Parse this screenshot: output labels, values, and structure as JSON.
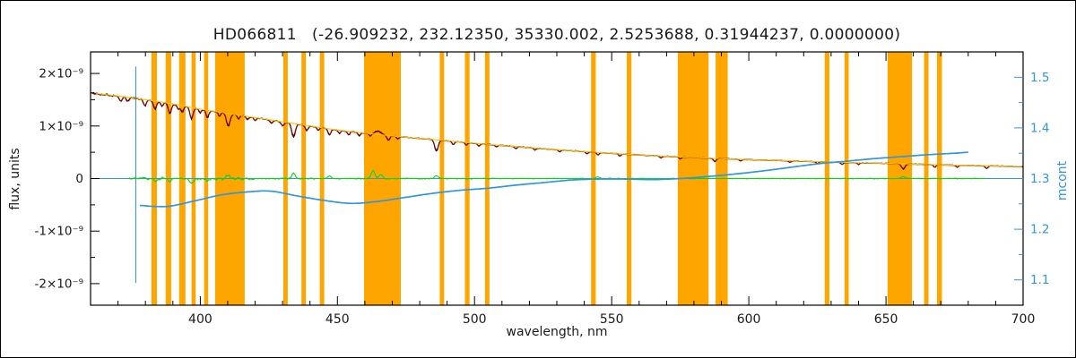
{
  "chart_data": {
    "type": "line",
    "title": "HD066811   (-26.909232, 232.12350, 35330.002, 2.5253688, 0.31944237, 0.0000000)",
    "xlabel": "wavelength, nm",
    "ylabel_left": "flux, units",
    "ylabel_right": "mcont",
    "xlim": [
      360,
      700
    ],
    "flux_unit": "1e-9",
    "ylim_left_1e9": [
      -2.41,
      2.41
    ],
    "ylim_right": [
      1.05,
      1.55
    ],
    "x_major_ticks": [
      400,
      450,
      500,
      550,
      600,
      650,
      700
    ],
    "x_minor_step": 10,
    "y_left_ticks": [
      {
        "value": 2,
        "label": "2×10⁻⁹"
      },
      {
        "value": 1,
        "label": "1×10⁻⁹"
      },
      {
        "value": 0,
        "label": "0"
      },
      {
        "value": -1,
        "label": "-1×10⁻⁹"
      },
      {
        "value": -2,
        "label": "-2×10⁻⁹"
      }
    ],
    "y_right_ticks": [
      1.1,
      1.2,
      1.3,
      1.4,
      1.5
    ],
    "colors": {
      "mask": "#FFA500",
      "axis_text": "#1A1A1A",
      "mcont": "#2F97E0"
    },
    "mask_bands_nm": [
      [
        382.2,
        384.2
      ],
      [
        387.4,
        389.4
      ],
      [
        392.3,
        394.6
      ],
      [
        396.8,
        398.3
      ],
      [
        401.4,
        402.9
      ],
      [
        405.4,
        416.2
      ],
      [
        430.3,
        431.9
      ],
      [
        436.9,
        438.5
      ],
      [
        443.6,
        445.2
      ],
      [
        459.7,
        473.1
      ],
      [
        487.3,
        488.9
      ],
      [
        496.5,
        498.2
      ],
      [
        503.8,
        505.4
      ],
      [
        542.5,
        544.2
      ],
      [
        555.5,
        557.2
      ],
      [
        574.1,
        585.3
      ],
      [
        587.9,
        592.3
      ],
      [
        627.7,
        629.4
      ],
      [
        634.9,
        636.4
      ],
      [
        650.6,
        659.5
      ],
      [
        663.9,
        665.5
      ],
      [
        668.6,
        670.4
      ]
    ],
    "reference_lines": {
      "horizontal_flux_1e9": 0,
      "vertical_nm": 376.5,
      "vertical_top_1e9": 2.13,
      "vertical_bottom_1e9": -1.99
    },
    "absorption_lines_nm": [
      [
        371.0,
        0.1,
        0.7
      ],
      [
        373.5,
        0.08,
        0.6
      ],
      [
        379.8,
        0.12,
        0.7
      ],
      [
        383.5,
        0.16,
        0.7
      ],
      [
        386.0,
        0.08,
        0.6
      ],
      [
        388.9,
        0.2,
        0.8
      ],
      [
        392.0,
        0.08,
        0.6
      ],
      [
        393.4,
        0.12,
        0.7
      ],
      [
        396.8,
        0.22,
        0.8
      ],
      [
        400.0,
        0.07,
        0.6
      ],
      [
        402.6,
        0.14,
        0.7
      ],
      [
        407.0,
        0.08,
        0.6
      ],
      [
        410.2,
        0.24,
        0.9
      ],
      [
        414.0,
        0.08,
        0.6
      ],
      [
        417.2,
        0.07,
        0.6
      ],
      [
        420.0,
        0.06,
        0.6
      ],
      [
        426.0,
        0.06,
        0.6
      ],
      [
        430.0,
        0.08,
        0.7
      ],
      [
        434.0,
        0.26,
        0.9
      ],
      [
        438.8,
        0.1,
        0.7
      ],
      [
        443.0,
        0.06,
        0.6
      ],
      [
        447.1,
        0.12,
        0.7
      ],
      [
        450.7,
        0.06,
        0.6
      ],
      [
        454.1,
        0.07,
        0.6
      ],
      [
        458.0,
        0.06,
        0.6
      ],
      [
        462.0,
        0.05,
        0.6
      ],
      [
        468.6,
        0.09,
        0.7
      ],
      [
        472.0,
        0.05,
        0.6
      ],
      [
        486.1,
        0.22,
        0.9
      ],
      [
        492.2,
        0.07,
        0.6
      ],
      [
        497.0,
        0.05,
        0.6
      ],
      [
        501.6,
        0.05,
        0.6
      ],
      [
        508.0,
        0.04,
        0.6
      ],
      [
        515.0,
        0.04,
        0.6
      ],
      [
        522.0,
        0.04,
        0.6
      ],
      [
        531.0,
        0.04,
        0.6
      ],
      [
        541.0,
        0.04,
        0.6
      ],
      [
        545.0,
        0.05,
        0.6
      ],
      [
        553.0,
        0.04,
        0.6
      ],
      [
        568.0,
        0.04,
        0.6
      ],
      [
        575.0,
        0.04,
        0.6
      ],
      [
        587.6,
        0.06,
        0.7
      ],
      [
        597.0,
        0.03,
        0.6
      ],
      [
        615.0,
        0.03,
        0.6
      ],
      [
        625.0,
        0.04,
        0.6
      ],
      [
        634.0,
        0.04,
        0.6
      ],
      [
        640.0,
        0.03,
        0.6
      ],
      [
        656.3,
        0.1,
        0.9
      ],
      [
        667.8,
        0.05,
        0.6
      ],
      [
        676.0,
        0.04,
        0.6
      ],
      [
        686.7,
        0.05,
        0.7
      ]
    ],
    "emission_lines_nm": [
      [
        464.8,
        0.07,
        1.6
      ]
    ],
    "series": {
      "spectrum": {
        "name": "observed spectrum",
        "color": "#000000",
        "range_nm": [
          360,
          700
        ]
      },
      "fit": {
        "name": "fitted spectrum",
        "color": "#990000",
        "range_nm": [
          360,
          700
        ]
      },
      "continuum": {
        "name": "continuum",
        "color": "#FFC200",
        "anchors_nm_flux1e9": [
          [
            360,
            1.63
          ],
          [
            370,
            1.57
          ],
          [
            380,
            1.5
          ],
          [
            390,
            1.42
          ],
          [
            400,
            1.32
          ],
          [
            410,
            1.24
          ],
          [
            420,
            1.16
          ],
          [
            430,
            1.08
          ],
          [
            440,
            1.0
          ],
          [
            450,
            0.925
          ],
          [
            460,
            0.865
          ],
          [
            470,
            0.81
          ],
          [
            480,
            0.765
          ],
          [
            490,
            0.72
          ],
          [
            500,
            0.672
          ],
          [
            510,
            0.63
          ],
          [
            520,
            0.59
          ],
          [
            530,
            0.55
          ],
          [
            540,
            0.515
          ],
          [
            550,
            0.48
          ],
          [
            560,
            0.45
          ],
          [
            570,
            0.425
          ],
          [
            580,
            0.4
          ],
          [
            590,
            0.38
          ],
          [
            600,
            0.36
          ],
          [
            610,
            0.345
          ],
          [
            620,
            0.33
          ],
          [
            630,
            0.315
          ],
          [
            640,
            0.3
          ],
          [
            650,
            0.29
          ],
          [
            660,
            0.275
          ],
          [
            670,
            0.26
          ],
          [
            680,
            0.25
          ],
          [
            690,
            0.24
          ],
          [
            700,
            0.225
          ]
        ]
      },
      "residual": {
        "name": "residual",
        "color": "#00DC00",
        "range_nm": [
          374,
          686
        ],
        "spikes": [
          [
            383.5,
            -0.06
          ],
          [
            388.9,
            -0.07
          ],
          [
            396.8,
            -0.1
          ],
          [
            402.6,
            -0.05
          ],
          [
            410.2,
            0.06
          ],
          [
            434.0,
            0.1
          ],
          [
            447.1,
            0.05
          ],
          [
            463.0,
            0.15
          ],
          [
            465.8,
            0.08
          ],
          [
            486.1,
            0.06
          ],
          [
            545.0,
            0.03
          ],
          [
            656.3,
            0.04
          ]
        ]
      },
      "mcont": {
        "name": "mcont",
        "color": "#2F97E0",
        "range_nm": [
          378,
          680
        ],
        "anchors": [
          [
            378,
            1.247
          ],
          [
            388,
            1.245
          ],
          [
            398,
            1.256
          ],
          [
            408,
            1.268
          ],
          [
            418,
            1.274
          ],
          [
            426,
            1.275
          ],
          [
            435,
            1.266
          ],
          [
            445,
            1.257
          ],
          [
            455,
            1.251
          ],
          [
            465,
            1.255
          ],
          [
            475,
            1.263
          ],
          [
            485,
            1.271
          ],
          [
            495,
            1.277
          ],
          [
            505,
            1.281
          ],
          [
            515,
            1.287
          ],
          [
            525,
            1.292
          ],
          [
            535,
            1.297
          ],
          [
            545,
            1.299
          ],
          [
            555,
            1.299
          ],
          [
            565,
            1.298
          ],
          [
            575,
            1.3
          ],
          [
            585,
            1.304
          ],
          [
            595,
            1.309
          ],
          [
            605,
            1.315
          ],
          [
            615,
            1.322
          ],
          [
            625,
            1.329
          ],
          [
            635,
            1.334
          ],
          [
            645,
            1.339
          ],
          [
            655,
            1.343
          ],
          [
            665,
            1.347
          ],
          [
            675,
            1.35
          ],
          [
            680,
            1.352
          ]
        ]
      }
    }
  }
}
